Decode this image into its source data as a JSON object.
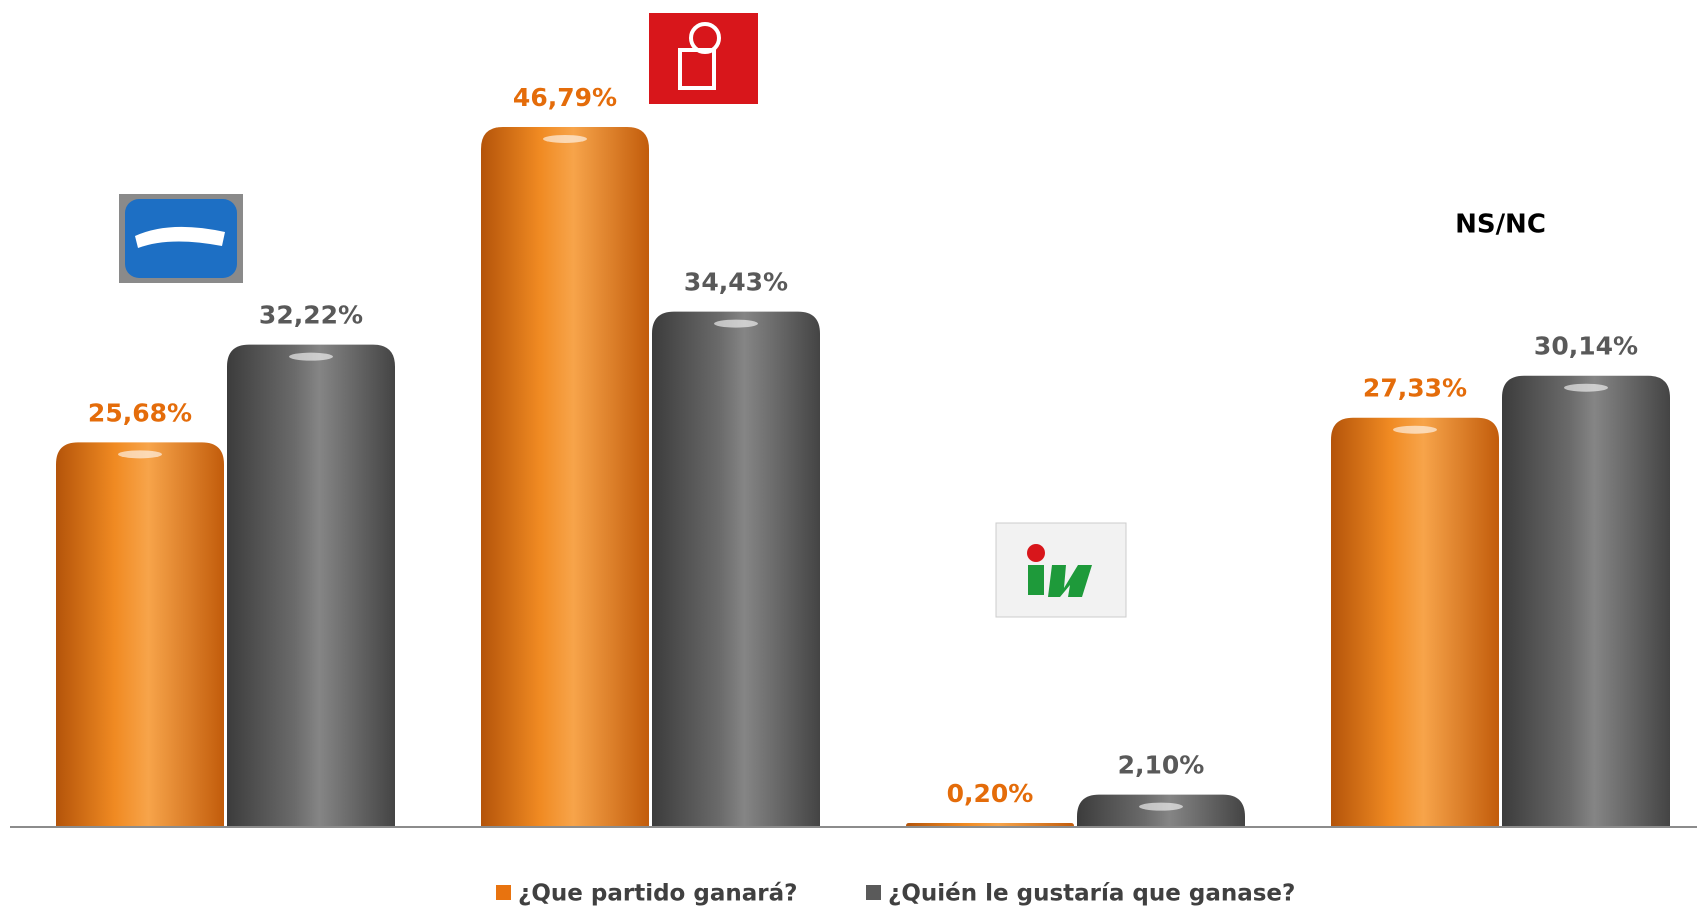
{
  "chart_data": {
    "type": "bar",
    "categories": [
      null,
      null,
      null,
      "NS/NC"
    ],
    "series": [
      {
        "name": "¿Que partido ganará?",
        "color": "#e8730f",
        "values": [
          25.68,
          46.79,
          0.2,
          27.33
        ],
        "value_labels": [
          "25,68%",
          "46,79%",
          "0,20%",
          "27,33%"
        ]
      },
      {
        "name": "¿Quién le gustaría que ganase?",
        "color": "#5a5a5a",
        "values": [
          32.22,
          34.43,
          2.1,
          30.14
        ],
        "value_labels": [
          "32,22%",
          "34,43%",
          "2,10%",
          "30,14%"
        ]
      }
    ],
    "legend": "bottom"
  }
}
